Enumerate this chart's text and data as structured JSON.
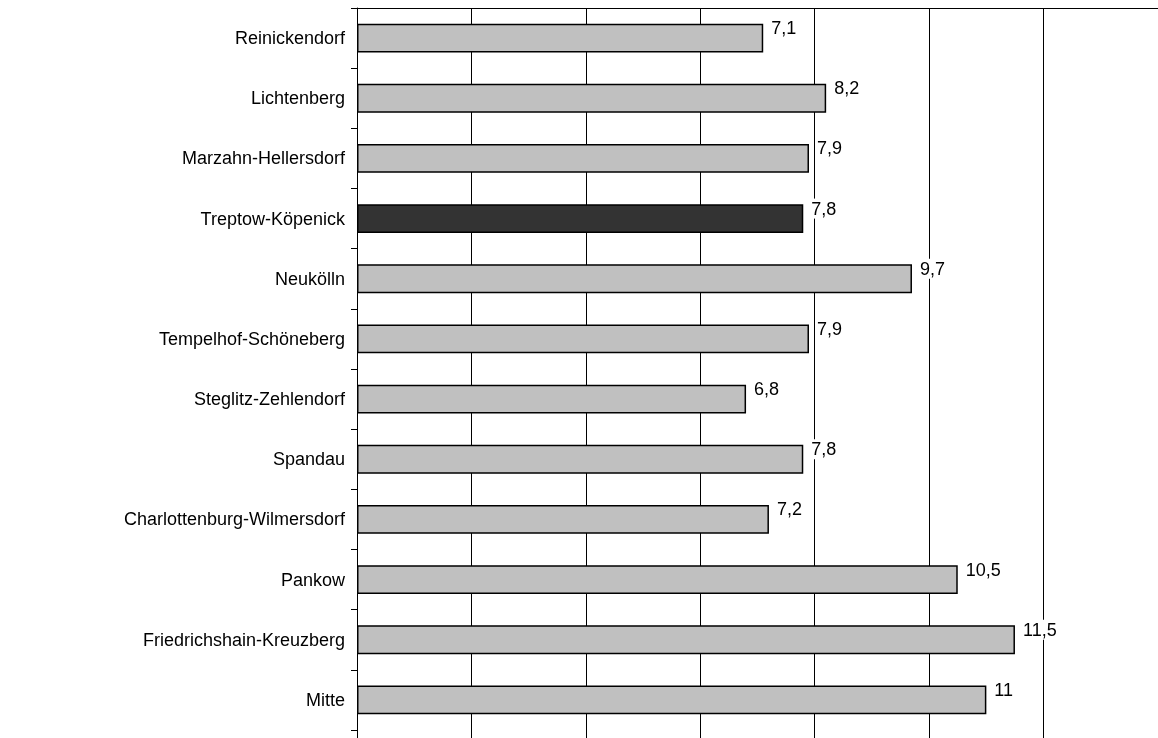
{
  "chart_data": {
    "type": "bar",
    "orientation": "horizontal",
    "categories": [
      "Reinickendorf",
      "Lichtenberg",
      "Marzahn-Hellersdorf",
      "Treptow-Köpenick",
      "Neukölln",
      "Tempelhof-Schöneberg",
      "Steglitz-Zehlendorf",
      "Spandau",
      "Charlottenburg-Wilmersdorf",
      "Pankow",
      "Friedrichshain-Kreuzberg",
      "Mitte"
    ],
    "values": [
      7.1,
      8.2,
      7.9,
      7.8,
      9.7,
      7.9,
      6.8,
      7.8,
      7.2,
      10.5,
      11.5,
      11
    ],
    "value_labels": [
      "7,1",
      "8,2",
      "7,9",
      "7,8",
      "9,7",
      "7,9",
      "6,8",
      "7,8",
      "7,2",
      "10,5",
      "11,5",
      "11"
    ],
    "colors": [
      "#c0c0c0",
      "#c0c0c0",
      "#c0c0c0",
      "#333333",
      "#c0c0c0",
      "#c0c0c0",
      "#c0c0c0",
      "#c0c0c0",
      "#c0c0c0",
      "#c0c0c0",
      "#c0c0c0",
      "#c0c0c0"
    ],
    "xlim": [
      0,
      14
    ],
    "xticks": [
      {
        "value": 0,
        "label": null
      },
      {
        "value": 2,
        "label": null
      },
      {
        "value": 4,
        "label": null
      },
      {
        "value": 6,
        "label": null
      },
      {
        "value": 8,
        "label": null
      },
      {
        "value": 10,
        "label": null
      },
      {
        "value": 12,
        "label": null
      },
      {
        "value": 14,
        "label": null
      }
    ],
    "grid": "x"
  }
}
